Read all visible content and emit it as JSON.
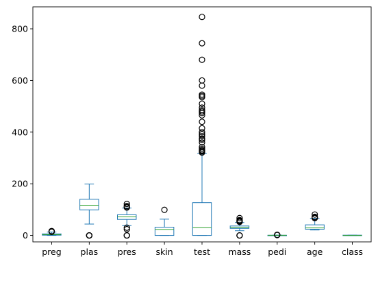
{
  "chart_data": {
    "type": "box",
    "title": "",
    "xlabel": "",
    "ylabel": "",
    "ylim": [
      -25,
      885
    ],
    "yticks": [
      0,
      200,
      400,
      600,
      800
    ],
    "grid": false,
    "legend": "none",
    "colors": {
      "box": "#1f77b4",
      "median": "#2ca02c",
      "flier": "#000000"
    },
    "categories": [
      "preg",
      "plas",
      "pres",
      "skin",
      "test",
      "mass",
      "pedi",
      "age",
      "class"
    ],
    "boxes": [
      {
        "q1": 1,
        "median": 3,
        "q3": 6,
        "whisker_low": 0,
        "whisker_high": 13,
        "outliers": [
          14,
          15,
          17
        ]
      },
      {
        "q1": 99,
        "median": 117,
        "q3": 140,
        "whisker_low": 44,
        "whisker_high": 199,
        "outliers": [
          0,
          0,
          0,
          0,
          0
        ]
      },
      {
        "q1": 62,
        "median": 72,
        "q3": 80,
        "whisker_low": 38,
        "whisker_high": 106,
        "outliers": [
          0,
          0,
          0,
          24,
          30,
          108,
          110,
          114,
          122
        ]
      },
      {
        "q1": 0,
        "median": 23,
        "q3": 32,
        "whisker_low": 0,
        "whisker_high": 63,
        "outliers": [
          99
        ]
      },
      {
        "q1": 0,
        "median": 30,
        "q3": 127,
        "whisker_low": 0,
        "whisker_high": 318,
        "outliers": [
          321,
          325,
          328,
          330,
          335,
          342,
          360,
          370,
          375,
          385,
          392,
          400,
          415,
          440,
          465,
          474,
          480,
          485,
          495,
          510,
          535,
          540,
          545,
          580,
          600,
          680,
          744,
          846
        ]
      },
      {
        "q1": 27.3,
        "median": 32,
        "q3": 36.6,
        "whisker_low": 18.2,
        "whisker_high": 50,
        "outliers": [
          0,
          0,
          0,
          52.3,
          53.2,
          55,
          57.3,
          59.4,
          67.1
        ]
      },
      {
        "q1": 0.24,
        "median": 0.37,
        "q3": 0.63,
        "whisker_low": 0.08,
        "whisker_high": 1.2,
        "outliers": [
          1.4,
          1.7,
          2.1,
          2.42
        ]
      },
      {
        "q1": 24,
        "median": 29,
        "q3": 41,
        "whisker_low": 21,
        "whisker_high": 66,
        "outliers": [
          67,
          69,
          70,
          72,
          81
        ]
      },
      {
        "q1": 0,
        "median": 0,
        "q3": 1,
        "whisker_low": 0,
        "whisker_high": 1,
        "outliers": []
      }
    ]
  }
}
